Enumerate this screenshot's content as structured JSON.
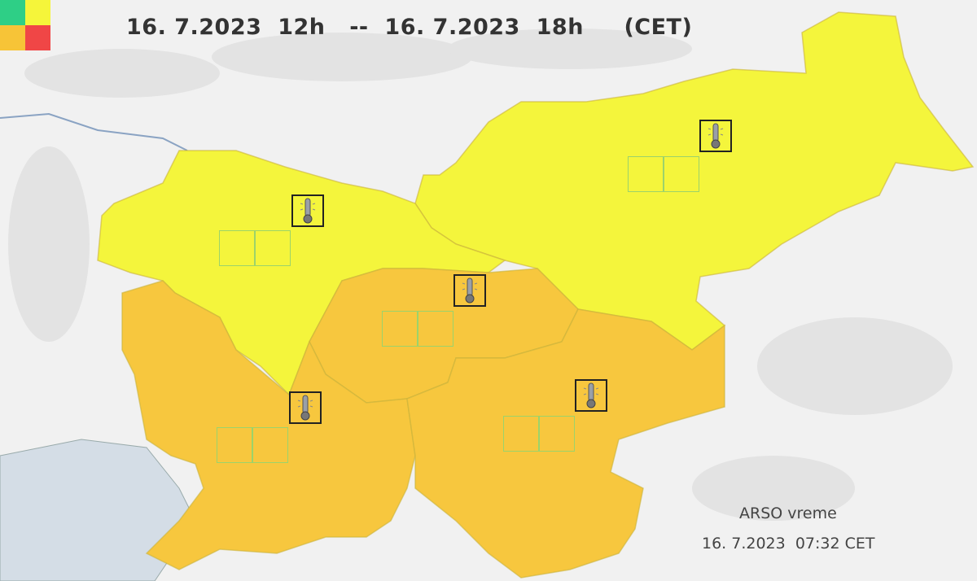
{
  "header": {
    "period": "16. 7.2023  12h   --  16. 7.2023  18h     (CET)"
  },
  "legend": {
    "colors": [
      "#2ecf86",
      "#f5f53a",
      "#f7c437",
      "#f04646"
    ]
  },
  "regions": [
    {
      "id": "northwest",
      "warning_level": "yellow",
      "color": "#f4f53c",
      "icon": "thermometer-icon"
    },
    {
      "id": "northeast",
      "warning_level": "yellow",
      "color": "#f4f53c",
      "icon": "thermometer-icon"
    },
    {
      "id": "central",
      "warning_level": "orange",
      "color": "#f7c73e",
      "icon": "thermometer-icon"
    },
    {
      "id": "southwest",
      "warning_level": "orange",
      "color": "#f7c73e",
      "icon": "thermometer-icon"
    },
    {
      "id": "southeast",
      "warning_level": "orange",
      "color": "#f7c73e",
      "icon": "thermometer-icon"
    }
  ],
  "footer": {
    "source": "ARSO vreme",
    "issued": "16. 7.2023  07:32 CET"
  }
}
